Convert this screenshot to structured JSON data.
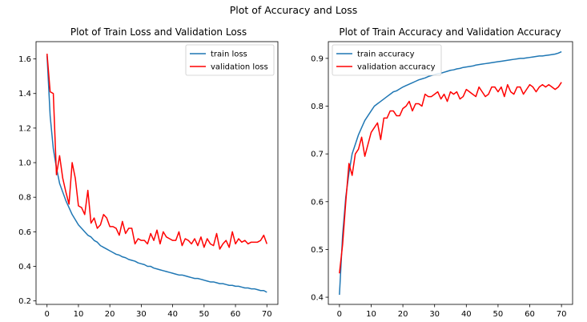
{
  "figure": {
    "suptitle": "Plot of Accuracy and Loss"
  },
  "colors": {
    "train": "#1f77b4",
    "validation": "#ff0000",
    "axes": "#000000",
    "background": "#ffffff"
  },
  "chart_data": [
    {
      "type": "line",
      "title": "Plot of Train Loss and Validation Loss",
      "xlabel": "",
      "ylabel": "",
      "xlim": [
        -3.5,
        73.5
      ],
      "ylim": [
        0.18,
        1.7
      ],
      "xticks": [
        0,
        10,
        20,
        30,
        40,
        50,
        60,
        70
      ],
      "yticks": [
        0.2,
        0.4,
        0.6,
        0.8,
        1.0,
        1.2,
        1.4,
        1.6
      ],
      "ytick_labels": [
        "0.2",
        "0.4",
        "0.6",
        "0.8",
        "1.0",
        "1.2",
        "1.4",
        "1.6"
      ],
      "grid": false,
      "legend_position": "top-right",
      "x": [
        0,
        1,
        2,
        3,
        4,
        5,
        6,
        7,
        8,
        9,
        10,
        11,
        12,
        13,
        14,
        15,
        16,
        17,
        18,
        19,
        20,
        21,
        22,
        23,
        24,
        25,
        26,
        27,
        28,
        29,
        30,
        31,
        32,
        33,
        34,
        35,
        36,
        37,
        38,
        39,
        40,
        41,
        42,
        43,
        44,
        45,
        46,
        47,
        48,
        49,
        50,
        51,
        52,
        53,
        54,
        55,
        56,
        57,
        58,
        59,
        60,
        61,
        62,
        63,
        64,
        65,
        66,
        67,
        68,
        69,
        70
      ],
      "series": [
        {
          "name": "train loss",
          "color": "#1f77b4",
          "values": [
            1.62,
            1.27,
            1.08,
            0.97,
            0.88,
            0.83,
            0.78,
            0.74,
            0.7,
            0.67,
            0.64,
            0.62,
            0.6,
            0.58,
            0.57,
            0.55,
            0.54,
            0.52,
            0.51,
            0.5,
            0.49,
            0.48,
            0.47,
            0.465,
            0.455,
            0.45,
            0.44,
            0.435,
            0.43,
            0.42,
            0.415,
            0.41,
            0.4,
            0.4,
            0.39,
            0.385,
            0.38,
            0.375,
            0.37,
            0.365,
            0.36,
            0.355,
            0.35,
            0.35,
            0.345,
            0.34,
            0.335,
            0.33,
            0.33,
            0.325,
            0.32,
            0.315,
            0.31,
            0.31,
            0.305,
            0.3,
            0.3,
            0.295,
            0.29,
            0.29,
            0.285,
            0.285,
            0.28,
            0.275,
            0.275,
            0.27,
            0.27,
            0.265,
            0.26,
            0.26,
            0.25
          ]
        },
        {
          "name": "validation loss",
          "color": "#ff0000",
          "values": [
            1.63,
            1.41,
            1.4,
            0.93,
            1.04,
            0.91,
            0.83,
            0.76,
            1.0,
            0.91,
            0.75,
            0.74,
            0.7,
            0.84,
            0.65,
            0.68,
            0.62,
            0.64,
            0.7,
            0.68,
            0.63,
            0.63,
            0.62,
            0.58,
            0.66,
            0.59,
            0.62,
            0.62,
            0.53,
            0.56,
            0.55,
            0.55,
            0.53,
            0.59,
            0.55,
            0.61,
            0.53,
            0.6,
            0.57,
            0.56,
            0.55,
            0.55,
            0.6,
            0.52,
            0.56,
            0.55,
            0.53,
            0.56,
            0.52,
            0.57,
            0.51,
            0.56,
            0.53,
            0.52,
            0.59,
            0.5,
            0.53,
            0.55,
            0.51,
            0.6,
            0.53,
            0.56,
            0.54,
            0.55,
            0.53,
            0.54,
            0.54,
            0.54,
            0.55,
            0.58,
            0.53
          ]
        }
      ]
    },
    {
      "type": "line",
      "title": "Plot of Train Accuracy and Validation Accuracy",
      "xlabel": "",
      "ylabel": "",
      "xlim": [
        -3.5,
        73.5
      ],
      "ylim": [
        0.385,
        0.935
      ],
      "xticks": [
        0,
        10,
        20,
        30,
        40,
        50,
        60,
        70
      ],
      "yticks": [
        0.4,
        0.5,
        0.6,
        0.7,
        0.8,
        0.9
      ],
      "ytick_labels": [
        "0.4",
        "0.5",
        "0.6",
        "0.7",
        "0.8",
        "0.9"
      ],
      "grid": false,
      "legend_position": "top-left",
      "x": [
        0,
        1,
        2,
        3,
        4,
        5,
        6,
        7,
        8,
        9,
        10,
        11,
        12,
        13,
        14,
        15,
        16,
        17,
        18,
        19,
        20,
        21,
        22,
        23,
        24,
        25,
        26,
        27,
        28,
        29,
        30,
        31,
        32,
        33,
        34,
        35,
        36,
        37,
        38,
        39,
        40,
        41,
        42,
        43,
        44,
        45,
        46,
        47,
        48,
        49,
        50,
        51,
        52,
        53,
        54,
        55,
        56,
        57,
        58,
        59,
        60,
        61,
        62,
        63,
        64,
        65,
        66,
        67,
        68,
        69,
        70
      ],
      "series": [
        {
          "name": "train accuracy",
          "color": "#1f77b4",
          "values": [
            0.405,
            0.53,
            0.61,
            0.66,
            0.7,
            0.72,
            0.74,
            0.755,
            0.77,
            0.78,
            0.79,
            0.8,
            0.805,
            0.81,
            0.815,
            0.82,
            0.825,
            0.83,
            0.832,
            0.836,
            0.84,
            0.843,
            0.846,
            0.849,
            0.852,
            0.855,
            0.857,
            0.859,
            0.862,
            0.864,
            0.866,
            0.868,
            0.869,
            0.871,
            0.873,
            0.875,
            0.876,
            0.878,
            0.879,
            0.881,
            0.882,
            0.883,
            0.884,
            0.886,
            0.887,
            0.888,
            0.889,
            0.89,
            0.891,
            0.892,
            0.893,
            0.894,
            0.895,
            0.896,
            0.897,
            0.898,
            0.899,
            0.9,
            0.9,
            0.901,
            0.902,
            0.903,
            0.904,
            0.905,
            0.905,
            0.906,
            0.907,
            0.908,
            0.909,
            0.911,
            0.914
          ]
        },
        {
          "name": "validation accuracy",
          "color": "#ff0000",
          "values": [
            0.45,
            0.51,
            0.6,
            0.68,
            0.655,
            0.7,
            0.71,
            0.735,
            0.695,
            0.72,
            0.745,
            0.755,
            0.765,
            0.73,
            0.775,
            0.775,
            0.79,
            0.79,
            0.78,
            0.78,
            0.795,
            0.8,
            0.81,
            0.79,
            0.805,
            0.805,
            0.8,
            0.825,
            0.82,
            0.82,
            0.825,
            0.83,
            0.815,
            0.825,
            0.81,
            0.83,
            0.825,
            0.83,
            0.815,
            0.82,
            0.835,
            0.83,
            0.825,
            0.82,
            0.84,
            0.83,
            0.82,
            0.825,
            0.84,
            0.84,
            0.83,
            0.84,
            0.82,
            0.845,
            0.83,
            0.825,
            0.84,
            0.84,
            0.825,
            0.835,
            0.845,
            0.84,
            0.83,
            0.84,
            0.845,
            0.84,
            0.845,
            0.84,
            0.835,
            0.84,
            0.85
          ]
        }
      ]
    }
  ]
}
